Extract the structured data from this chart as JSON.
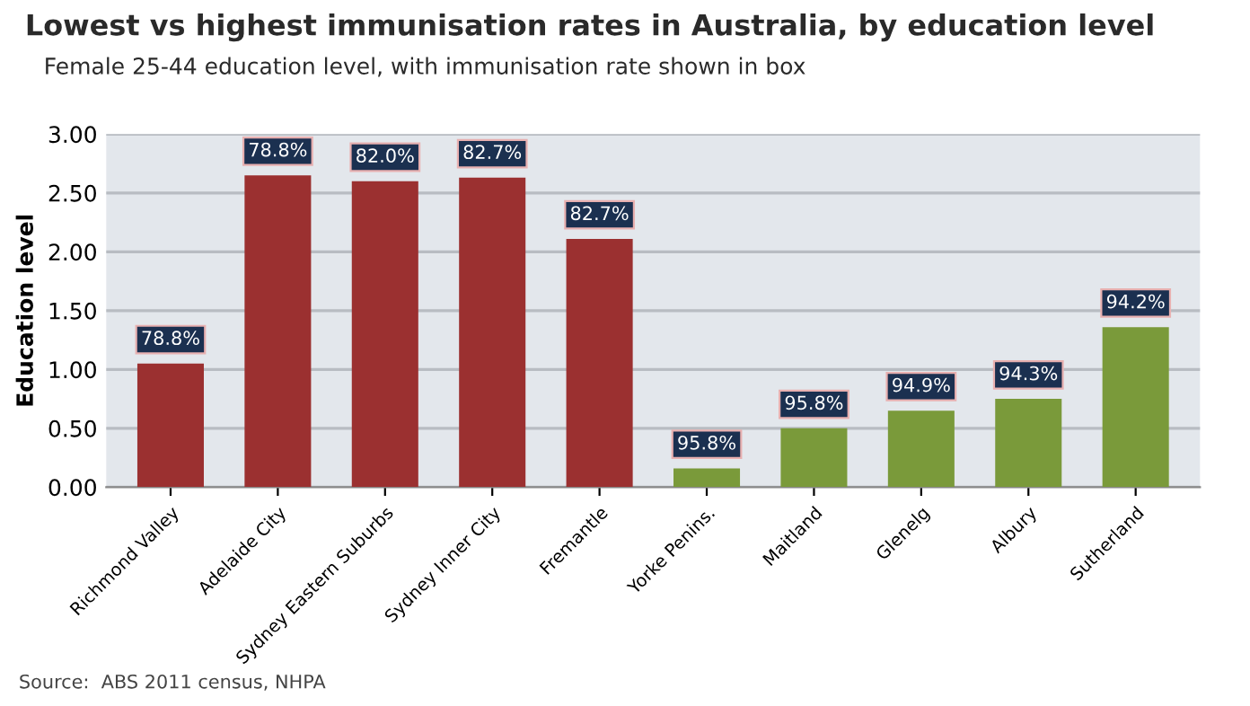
{
  "chart_data": {
    "type": "bar",
    "title": "Lowest vs highest immunisation rates in Australia, by education level",
    "subtitle": "Female 25-44 education level, with immunisation rate shown in box",
    "ylabel": "Education level",
    "categories": [
      "Richmond Valley",
      "Adelaide City",
      "Sydney Eastern Suburbs",
      "Sydney Inner City",
      "Fremantle",
      "Yorke Penins.",
      "Maitland",
      "Glenelg",
      "Albury",
      "Sutherland"
    ],
    "values": [
      1.05,
      2.65,
      2.6,
      2.63,
      2.11,
      0.16,
      0.5,
      0.65,
      0.75,
      1.36
    ],
    "colors": [
      "#9b3030",
      "#9b3030",
      "#9b3030",
      "#9b3030",
      "#9b3030",
      "#7a9a3a",
      "#7a9a3a",
      "#7a9a3a",
      "#7a9a3a",
      "#7a9a3a"
    ],
    "ylim": [
      0,
      3
    ],
    "yticks": [
      {
        "value": 0,
        "label": "0.00"
      },
      {
        "value": 0.5,
        "label": "0.50"
      },
      {
        "value": 1,
        "label": "1.00"
      },
      {
        "value": 1.5,
        "label": "1.50"
      },
      {
        "value": 2,
        "label": "2.00"
      },
      {
        "value": 2.5,
        "label": "2.50"
      },
      {
        "value": 3,
        "label": "3.00"
      }
    ],
    "grid": "y",
    "annotations": [
      "Source:  ABS 2011 census, NHPA",
      {
        "text": "78.8%",
        "x": "Richmond Valley",
        "y": 1.05
      },
      {
        "text": "78.8%",
        "x": "Adelaide City",
        "y": 2.65
      },
      {
        "text": "82.0%",
        "x": "Sydney Eastern Suburbs",
        "y": 2.6
      },
      {
        "text": "82.7%",
        "x": "Sydney Inner City",
        "y": 2.63
      },
      {
        "text": "82.7%",
        "x": "Fremantle",
        "y": 2.11
      },
      {
        "text": "95.8%",
        "x": "Yorke Penins.",
        "y": 0.16
      },
      {
        "text": "95.8%",
        "x": "Maitland",
        "y": 0.5
      },
      {
        "text": "94.9%",
        "x": "Glenelg",
        "y": 0.65
      },
      {
        "text": "94.3%",
        "x": "Albury",
        "y": 0.75
      },
      {
        "text": "94.2%",
        "x": "Sutherland",
        "y": 1.36
      }
    ]
  }
}
